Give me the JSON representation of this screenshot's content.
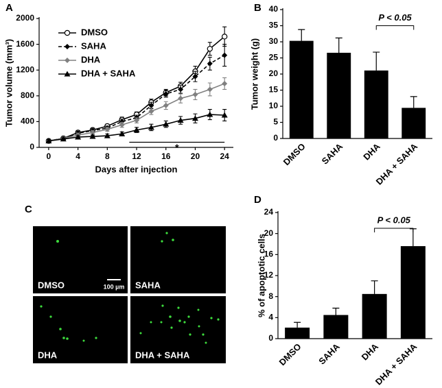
{
  "chart_data": [
    {
      "type": "line",
      "panel": "A",
      "x_label": "Days after injection",
      "y_label": "Tumor volume (mm³)",
      "x": [
        0,
        2,
        4,
        6,
        8,
        10,
        12,
        14,
        16,
        18,
        20,
        22,
        24
      ],
      "xlim": [
        -1.3,
        25.2
      ],
      "xticks": [
        0,
        4,
        8,
        12,
        16,
        20,
        24
      ],
      "ylim": [
        0,
        2000
      ],
      "yticks": [
        0,
        400,
        800,
        1200,
        1600,
        2000
      ],
      "grid": false,
      "legend": "top-left",
      "series": [
        {
          "name": "DMSO",
          "color": "#000000",
          "marker": "open-circle",
          "dash": "solid",
          "values": [
            100,
            140,
            230,
            270,
            330,
            430,
            510,
            700,
            850,
            950,
            1180,
            1530,
            1720
          ],
          "errors": [
            20,
            20,
            30,
            30,
            30,
            40,
            40,
            50,
            50,
            60,
            80,
            100,
            150
          ]
        },
        {
          "name": "SAHA",
          "color": "#000000",
          "marker": "diamond",
          "dash": "dashed",
          "values": [
            100,
            140,
            220,
            260,
            300,
            400,
            460,
            650,
            830,
            900,
            1100,
            1300,
            1430
          ],
          "errors": [
            20,
            20,
            30,
            30,
            30,
            40,
            40,
            50,
            50,
            60,
            80,
            100,
            170
          ]
        },
        {
          "name": "DHA",
          "color": "#808080",
          "marker": "diamond",
          "dash": "solid",
          "values": [
            100,
            140,
            190,
            230,
            280,
            350,
            420,
            560,
            650,
            760,
            820,
            900,
            990
          ],
          "errors": [
            20,
            20,
            30,
            30,
            30,
            40,
            40,
            50,
            60,
            70,
            80,
            100,
            90
          ]
        },
        {
          "name": "DHA + SAHA",
          "color": "#000000",
          "marker": "triangle",
          "dash": "solid",
          "values": [
            100,
            130,
            160,
            170,
            180,
            210,
            270,
            310,
            360,
            420,
            450,
            510,
            500
          ],
          "errors": [
            20,
            20,
            20,
            20,
            30,
            30,
            40,
            50,
            50,
            60,
            70,
            80,
            90
          ]
        }
      ],
      "significance": {
        "label": "*",
        "from": 11,
        "to": 24,
        "y": 80
      }
    },
    {
      "type": "bar",
      "panel": "B",
      "y_label": "Tumor weight (g)",
      "categories": [
        "DMSO",
        "SAHA",
        "DHA",
        "DHA + SAHA"
      ],
      "values": [
        30.3,
        26.6,
        21.1,
        9.5
      ],
      "errors": [
        3.5,
        4.6,
        5.7,
        3.5
      ],
      "color": "#000000",
      "ylim": [
        0,
        40
      ],
      "yticks": [
        0,
        5,
        10,
        15,
        20,
        25,
        30,
        35,
        40
      ],
      "grid": false,
      "significance": {
        "label": "P < 0.05",
        "y": 35
      }
    },
    {
      "type": "bar",
      "panel": "D",
      "y_label": "% of apoptotic cells",
      "categories": [
        "DMSO",
        "SAHA",
        "DHA",
        "DHA + SAHA"
      ],
      "values": [
        2.1,
        4.5,
        8.5,
        17.6
      ],
      "errors": [
        1.0,
        1.3,
        2.5,
        3.3
      ],
      "color": "#000000",
      "ylim": [
        0,
        24
      ],
      "yticks": [
        0,
        4,
        8,
        12,
        16,
        20,
        24
      ],
      "grid": false,
      "significance": {
        "label": "P < 0.05",
        "y": 21
      }
    }
  ],
  "panel_c": {
    "panel": "C",
    "images": [
      {
        "label": "DMSO"
      },
      {
        "label": "SAHA"
      },
      {
        "label": "DHA"
      },
      {
        "label": "DHA + SAHA"
      }
    ],
    "scale_bar": "100 µm"
  }
}
